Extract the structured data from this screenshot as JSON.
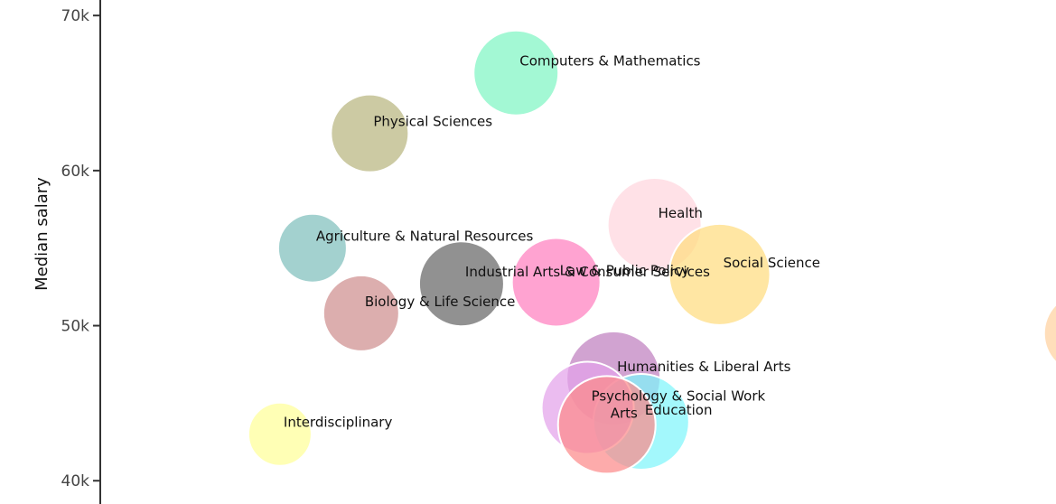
{
  "chart_data": {
    "type": "scatter",
    "ylabel": "Median salary",
    "yticks": [
      "40k",
      "50k",
      "60k",
      "70k"
    ],
    "ylim": [
      38500,
      71000
    ],
    "grid": false,
    "points": [
      {
        "label": "Computers & Mathematics",
        "x": 0.435,
        "y": 66300,
        "size": 47,
        "color": "#7ff5c4"
      },
      {
        "label": "Physical Sciences",
        "x": 0.282,
        "y": 62400,
        "size": 43,
        "color": "#b8b67f"
      },
      {
        "label": "Health",
        "x": 0.58,
        "y": 56500,
        "size": 52,
        "color": "#ffd6de"
      },
      {
        "label": "Agriculture & Natural Resources",
        "x": 0.222,
        "y": 55000,
        "size": 38,
        "color": "#7fbfbc"
      },
      {
        "label": "Social Science",
        "x": 0.648,
        "y": 53300,
        "size": 56,
        "color": "#ffdd7f"
      },
      {
        "label": "Industrial Arts & Consumer Services",
        "x": 0.378,
        "y": 52700,
        "size": 47,
        "color": "#666666"
      },
      {
        "label": "Law & Public Policy",
        "x": 0.477,
        "y": 52800,
        "size": 49,
        "color": "#ff7fbf"
      },
      {
        "label": "Biology & Life Science",
        "x": 0.273,
        "y": 50800,
        "size": 42,
        "color": "#cf8f8f"
      },
      {
        "label": "Humanities & Liberal Arts",
        "x": 0.537,
        "y": 46600,
        "size": 52,
        "color": "#bf7fbf"
      },
      {
        "label": "Education",
        "x": 0.566,
        "y": 43800,
        "size": 53,
        "color": "#7ff5fb"
      },
      {
        "label": "Psychology & Social Work",
        "x": 0.51,
        "y": 44700,
        "size": 51,
        "color": "#e3a2ea"
      },
      {
        "label": "Arts",
        "x": 0.53,
        "y": 43600,
        "size": 54,
        "color": "#fc8a8a"
      },
      {
        "label": "Interdisciplinary",
        "x": 0.188,
        "y": 43000,
        "size": 35,
        "color": "#ffff99"
      },
      {
        "label": "",
        "x": 1.03,
        "y": 49500,
        "size": 45,
        "color": "#ffd1a0"
      }
    ]
  }
}
